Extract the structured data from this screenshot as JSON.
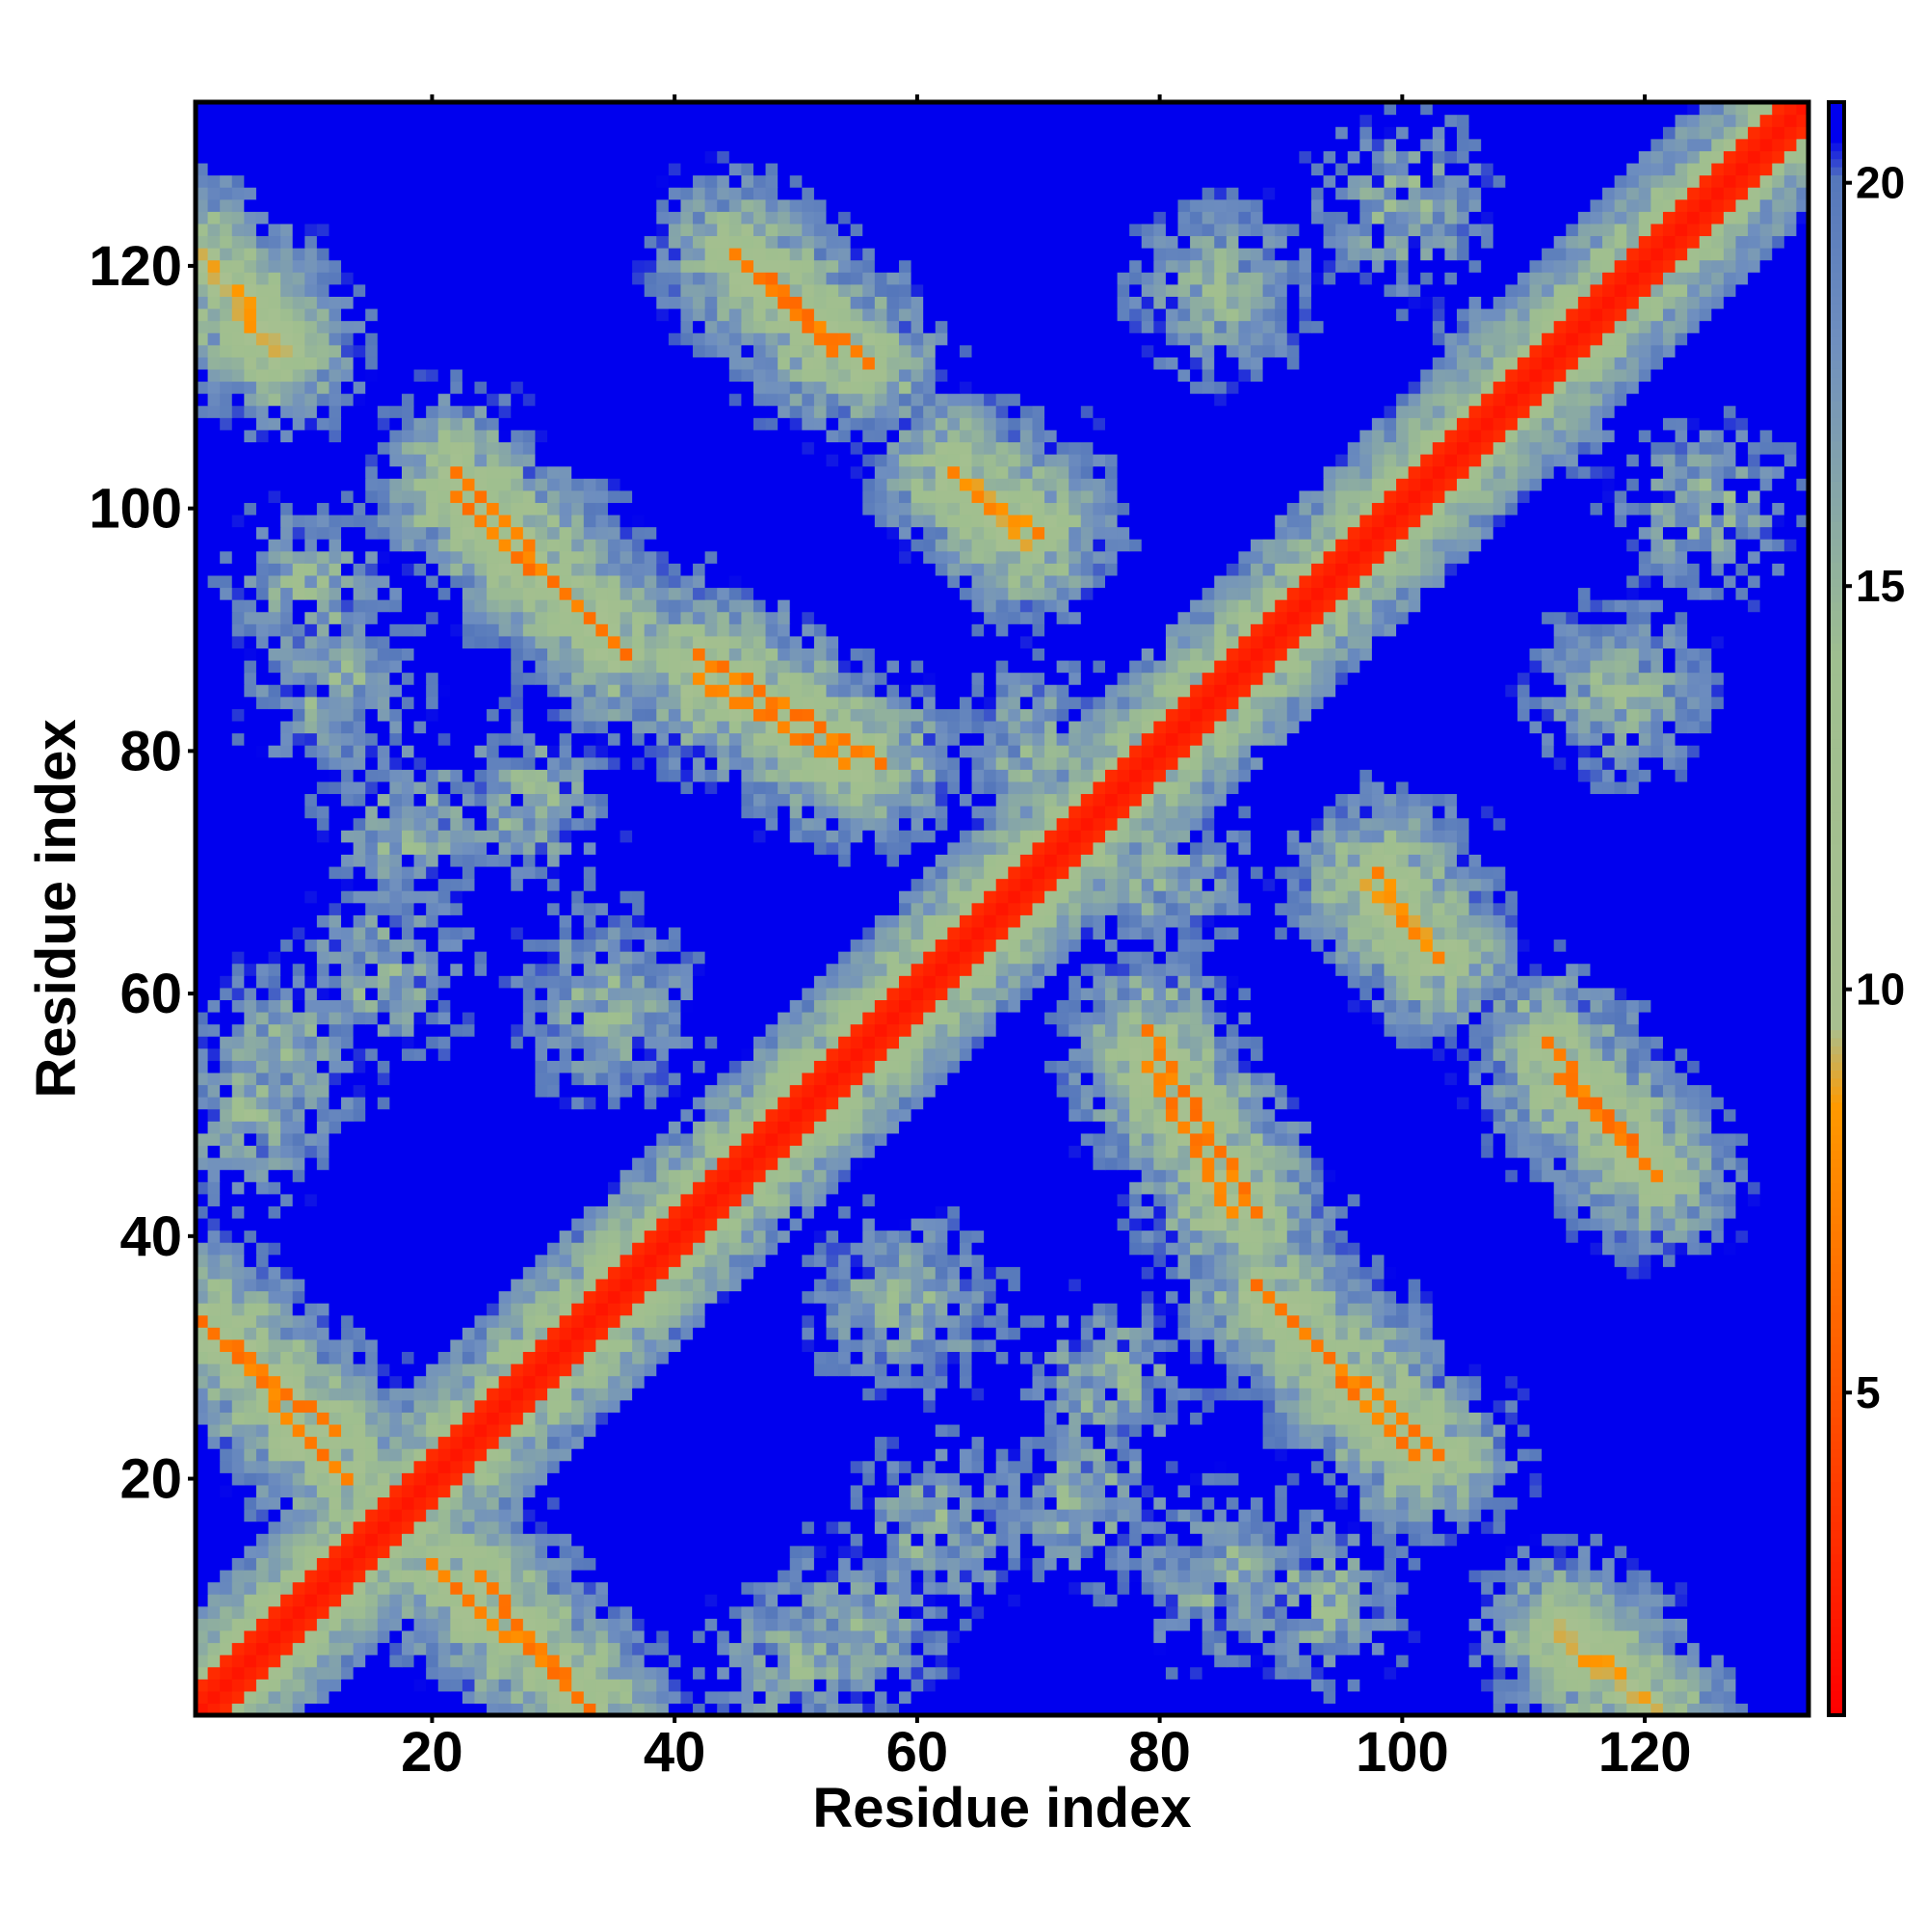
{
  "chart_data": {
    "type": "heatmap",
    "title": "",
    "xlabel": "Residue index",
    "ylabel": "Residue index",
    "n_residues": 133,
    "xlim": [
      1,
      133
    ],
    "ylim": [
      1,
      133
    ],
    "x_ticks": [
      20,
      40,
      60,
      80,
      100,
      120
    ],
    "y_ticks": [
      20,
      40,
      60,
      80,
      100,
      120
    ],
    "grid": false,
    "colorbar": {
      "position": "right",
      "range": [
        1,
        21
      ],
      "ticks": [
        5,
        10,
        15,
        20
      ],
      "colors": {
        "red": "#ff0000",
        "orange": "#ff9900",
        "sage": "#9fbf8f",
        "steel": "#6f8fbf",
        "blue": "#0000ee"
      },
      "stops": [
        {
          "value": 1,
          "color": "#ff0000"
        },
        {
          "value": 5,
          "color": "#ff5500"
        },
        {
          "value": 8.5,
          "color": "#ff9900"
        },
        {
          "value": 9.5,
          "color": "#a8c090"
        },
        {
          "value": 14,
          "color": "#9fbf8f"
        },
        {
          "value": 18,
          "color": "#6f8fbf"
        },
        {
          "value": 20,
          "color": "#5577bb"
        },
        {
          "value": 20.5,
          "color": "#0000ee"
        }
      ]
    },
    "description_of_matrix": "symmetric residue-residue distance map; values in Angstrom-like units, 1 (contact, red) to 21 (far, blue)",
    "diagonal_value": 2,
    "off_diagonal_features": [
      {
        "i": [
          45,
          53
        ],
        "j": [
          113,
          121
        ],
        "kind": "antiparallel",
        "value": 6
      },
      {
        "i": [
          22,
          34
        ],
        "j": [
          90,
          103
        ],
        "kind": "antiparallel",
        "value": 6
      },
      {
        "i": [
          42,
          57
        ],
        "j": [
          79,
          88
        ],
        "kind": "antiparallel",
        "value": 6
      },
      {
        "i": [
          1,
          13
        ],
        "j": [
          20,
          33
        ],
        "kind": "antiparallel",
        "value": 6
      },
      {
        "i": [
          1,
          7
        ],
        "j": [
          113,
          120
        ],
        "kind": "antiparallel",
        "value": 8
      },
      {
        "i": [
          63,
          69
        ],
        "j": [
          97,
          103
        ],
        "kind": "antiparallel",
        "value": 7
      },
      {
        "i": [
          88,
          101
        ],
        "j": [
          22,
          36
        ],
        "kind": "antiparallel",
        "value": 6
      },
      {
        "i": [
          79,
          86
        ],
        "j": [
          42,
          54
        ],
        "kind": "antiparallel",
        "value": 6
      },
      {
        "i": [
          98,
          103
        ],
        "j": [
          63,
          70
        ],
        "kind": "antiparallel",
        "value": 7
      },
      {
        "i": [
          112,
          121
        ],
        "j": [
          45,
          56
        ],
        "kind": "antiparallel",
        "value": 6
      },
      {
        "i": [
          24,
          33
        ],
        "j": [
          1,
          12
        ],
        "kind": "antiparallel",
        "value": 6
      },
      {
        "i": [
          113,
          121
        ],
        "j": [
          1,
          8
        ],
        "kind": "antiparallel",
        "value": 8
      }
    ]
  }
}
